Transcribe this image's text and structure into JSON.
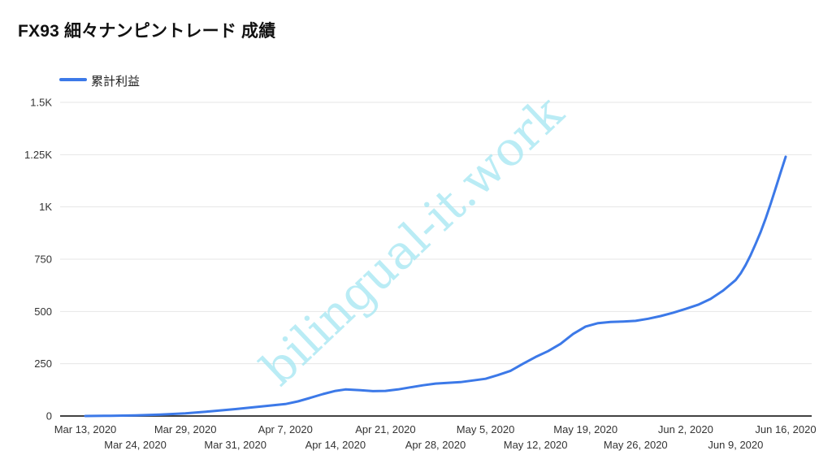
{
  "header": {
    "title": "FX93 細々ナンピントレード 成績"
  },
  "legend": {
    "label": "累計利益"
  },
  "watermark": {
    "text": "bilingual-it.work",
    "color": "#a9e8f3"
  },
  "colors": {
    "line": "#3c79e8",
    "grid": "#e6e6e6",
    "baseline": "#424242",
    "axis_text": "#333333",
    "title_text": "#111111"
  },
  "chart_data": {
    "type": "line",
    "title": "FX93 細々ナンピントレード 成績",
    "xlabel": "",
    "ylabel": "",
    "ylim": [
      0,
      1500
    ],
    "grid": true,
    "legend_position": "top-left",
    "y_ticks": [
      {
        "label": "0",
        "value": 0
      },
      {
        "label": "250",
        "value": 250
      },
      {
        "label": "500",
        "value": 500
      },
      {
        "label": "750",
        "value": 750
      },
      {
        "label": "1K",
        "value": 1000
      },
      {
        "label": "1.25K",
        "value": 1250
      },
      {
        "label": "1.5K",
        "value": 1500
      }
    ],
    "categories": [
      "Mar 13, 2020",
      "Mar 24, 2020",
      "Mar 29, 2020",
      "Mar 31, 2020",
      "Apr 7, 2020",
      "Apr 14, 2020",
      "Apr 21, 2020",
      "Apr 28, 2020",
      "May 5, 2020",
      "May 12, 2020",
      "May 19, 2020",
      "May 26, 2020",
      "Jun 2, 2020",
      "Jun 9, 2020",
      "Jun 16, 2020"
    ],
    "series": [
      {
        "name": "累計利益",
        "color": "#3c79e8",
        "values": [
          0,
          3,
          13,
          33,
          57,
          120,
          120,
          155,
          178,
          282,
          428,
          455,
          512,
          650,
          1240
        ]
      }
    ],
    "curve_samples": [
      [
        0,
        0
      ],
      [
        0.5,
        1
      ],
      [
        1,
        3
      ],
      [
        1.5,
        7
      ],
      [
        2,
        13
      ],
      [
        2.5,
        22
      ],
      [
        3,
        33
      ],
      [
        3.5,
        45
      ],
      [
        4,
        57
      ],
      [
        4.25,
        70
      ],
      [
        4.5,
        87
      ],
      [
        4.75,
        105
      ],
      [
        5,
        120
      ],
      [
        5.2,
        127
      ],
      [
        5.5,
        123
      ],
      [
        5.75,
        119
      ],
      [
        6,
        120
      ],
      [
        6.25,
        127
      ],
      [
        6.5,
        137
      ],
      [
        6.75,
        147
      ],
      [
        7,
        155
      ],
      [
        7.5,
        162
      ],
      [
        8,
        178
      ],
      [
        8.25,
        196
      ],
      [
        8.5,
        216
      ],
      [
        8.75,
        250
      ],
      [
        9,
        282
      ],
      [
        9.25,
        310
      ],
      [
        9.5,
        345
      ],
      [
        9.75,
        392
      ],
      [
        10,
        428
      ],
      [
        10.25,
        444
      ],
      [
        10.5,
        450
      ],
      [
        10.75,
        452
      ],
      [
        11,
        455
      ],
      [
        11.25,
        465
      ],
      [
        11.5,
        478
      ],
      [
        11.75,
        494
      ],
      [
        12,
        512
      ],
      [
        12.25,
        532
      ],
      [
        12.5,
        560
      ],
      [
        12.75,
        600
      ],
      [
        13,
        650
      ],
      [
        13.1,
        682
      ],
      [
        13.2,
        722
      ],
      [
        13.3,
        770
      ],
      [
        13.4,
        823
      ],
      [
        13.5,
        880
      ],
      [
        13.6,
        945
      ],
      [
        13.7,
        1015
      ],
      [
        13.8,
        1090
      ],
      [
        13.9,
        1165
      ],
      [
        14,
        1240
      ]
    ]
  }
}
